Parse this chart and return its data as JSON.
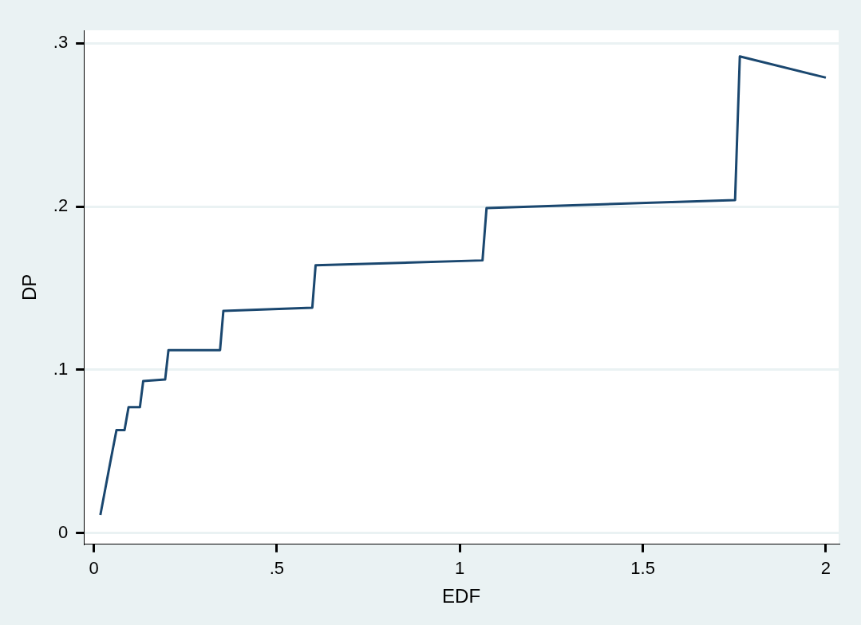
{
  "chart_data": {
    "type": "line",
    "xlabel": "EDF",
    "ylabel": "DP",
    "x": [
      0.018,
      0.044,
      0.062,
      0.084,
      0.095,
      0.126,
      0.135,
      0.195,
      0.204,
      0.345,
      0.354,
      0.597,
      0.606,
      1.062,
      1.073,
      1.752,
      1.765,
      2.0
    ],
    "series": [
      {
        "color": "#1a476f",
        "values": [
          0.011,
          0.042,
          0.063,
          0.063,
          0.077,
          0.077,
          0.093,
          0.094,
          0.112,
          0.112,
          0.136,
          0.138,
          0.164,
          0.167,
          0.199,
          0.204,
          0.292,
          0.279
        ]
      }
    ],
    "xlim": [
      -0.027,
      2.035
    ],
    "ylim": [
      -0.007,
      0.308
    ],
    "xticks": [
      0,
      {
        "value": 0.5,
        "label": ".5"
      },
      1,
      1.5,
      2
    ],
    "yticks": [
      0,
      {
        "value": 0.1,
        "label": ".1"
      },
      {
        "value": 0.2,
        "label": ".2"
      },
      {
        "value": 0.3,
        "label": ".3"
      }
    ],
    "grid": "y",
    "legend": false,
    "marker": "none",
    "line_style": "solid"
  }
}
